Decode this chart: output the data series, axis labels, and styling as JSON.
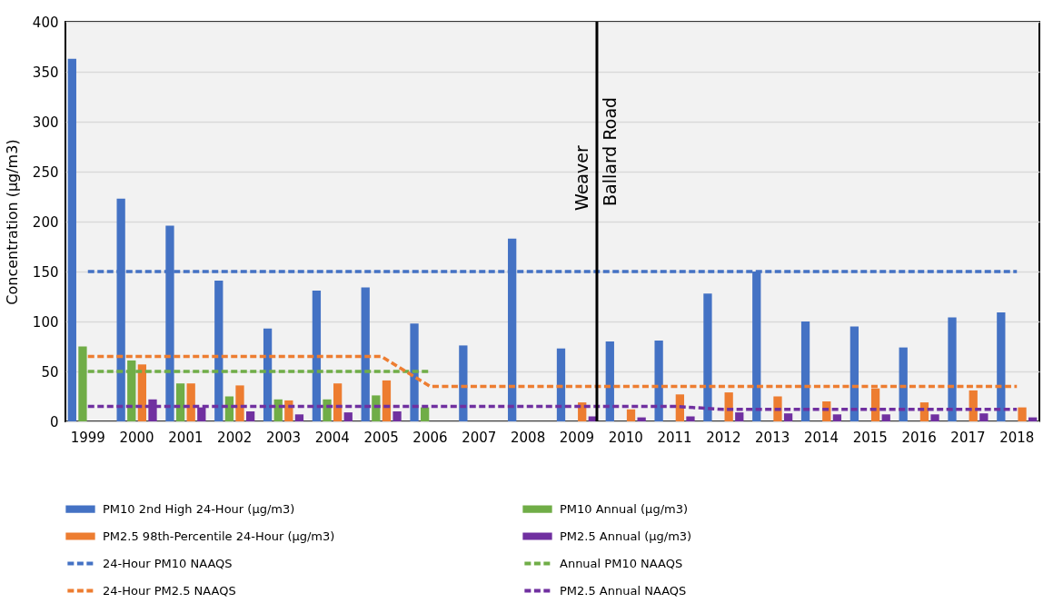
{
  "chart_data": {
    "type": "bar",
    "ylabel": "Concentration (µg/m3)",
    "categories": [
      "1999",
      "2000",
      "2001",
      "2002",
      "2003",
      "2004",
      "2005",
      "2006",
      "2007",
      "2008",
      "2009",
      "2010",
      "2011",
      "2012",
      "2013",
      "2014",
      "2015",
      "2016",
      "2017",
      "2018"
    ],
    "series": [
      {
        "name": "PM10 2nd High 24-Hour (µg/m3)",
        "color": "#4472c4",
        "values": [
          363,
          223,
          196,
          141,
          93,
          131,
          134,
          98,
          76,
          183,
          73,
          80,
          81,
          128,
          150,
          100,
          95,
          74,
          104,
          109
        ]
      },
      {
        "name": "PM10 Annual (µg/m3)",
        "color": "#70ad47",
        "values": [
          75,
          61,
          38,
          25,
          22,
          22,
          26,
          14,
          null,
          null,
          null,
          null,
          null,
          null,
          null,
          null,
          null,
          null,
          null,
          null
        ]
      },
      {
        "name": "PM2.5 98th-Percentile 24-Hour (µg/m3)",
        "color": "#ed7d31",
        "values": [
          null,
          57,
          38,
          36,
          21,
          38,
          41,
          null,
          null,
          null,
          19,
          12,
          27,
          29,
          25,
          20,
          33,
          19,
          31,
          14
        ]
      },
      {
        "name": "PM2.5 Annual (µg/m3)",
        "color": "#7030a0",
        "values": [
          null,
          22,
          14,
          10,
          7,
          9,
          10,
          null,
          null,
          null,
          5,
          4,
          5,
          9,
          8,
          7,
          7,
          7,
          8,
          4
        ]
      },
      {
        "name": "24-Hour PM10 NAAQS",
        "color": "#4472c4",
        "type": "line",
        "values": [
          150,
          150,
          150,
          150,
          150,
          150,
          150,
          150,
          150,
          150,
          150,
          150,
          150,
          150,
          150,
          150,
          150,
          150,
          150,
          150
        ]
      },
      {
        "name": "Annual PM10 NAAQS",
        "color": "#70ad47",
        "type": "line",
        "values": [
          50,
          50,
          50,
          50,
          50,
          50,
          50,
          50,
          null,
          null,
          null,
          null,
          null,
          null,
          null,
          null,
          null,
          null,
          null,
          null
        ]
      },
      {
        "name": "24-Hour PM2.5 NAAQS",
        "color": "#ed7d31",
        "type": "line",
        "values": [
          65,
          65,
          65,
          65,
          65,
          65,
          65,
          35,
          35,
          35,
          35,
          35,
          35,
          35,
          35,
          35,
          35,
          35,
          35,
          35
        ]
      },
      {
        "name": "PM2.5 Annual NAAQS",
        "color": "#7030a0",
        "type": "line",
        "values": [
          15,
          15,
          15,
          15,
          15,
          15,
          15,
          15,
          15,
          15,
          15,
          15,
          15,
          12,
          12,
          12,
          12,
          12,
          12,
          12
        ]
      }
    ],
    "ylim": [
      0,
      400
    ],
    "yticks": [
      0,
      50,
      100,
      150,
      200,
      250,
      300,
      350,
      400
    ],
    "grid": "y",
    "legend": "bottom",
    "line_style": "dashed",
    "marker": "none",
    "ref_lines": [
      {
        "axis": "x",
        "value": "2009",
        "label": null,
        "color": "#000000"
      }
    ],
    "annotations": [
      "Weaver",
      "Ballard Road"
    ]
  }
}
